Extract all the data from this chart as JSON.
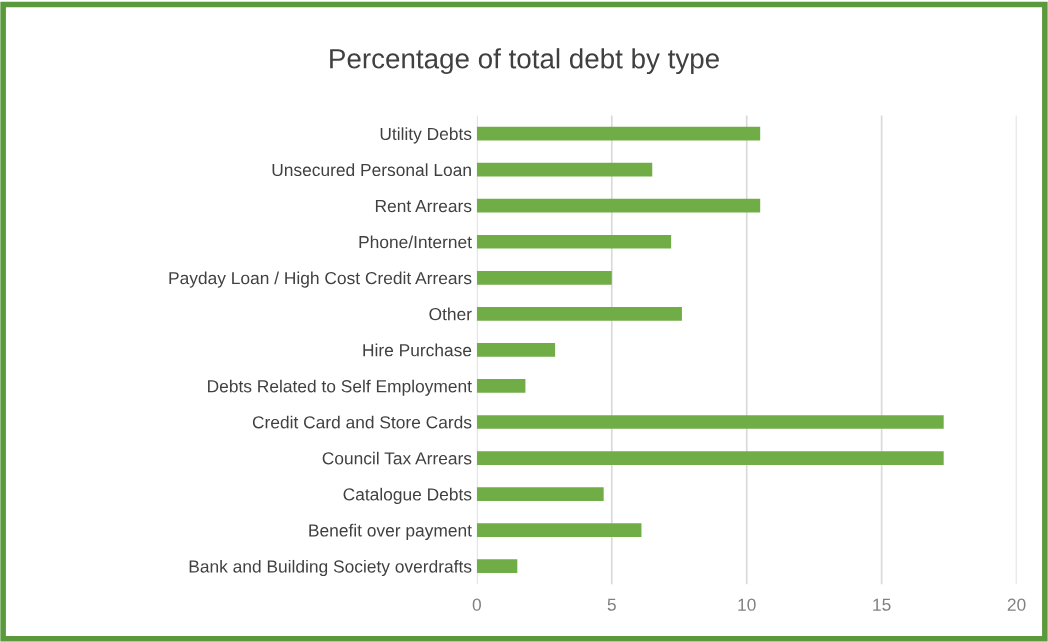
{
  "chart_data": {
    "type": "bar",
    "orientation": "horizontal",
    "title": "Percentage of total debt by type",
    "categories": [
      "Utility Debts",
      "Unsecured Personal Loan",
      "Rent Arrears",
      "Phone/Internet",
      "Payday Loan / High Cost Credit Arrears",
      "Other",
      "Hire Purchase",
      "Debts Related to Self Employment",
      "Credit Card and Store Cards",
      "Council Tax Arrears",
      "Catalogue Debts",
      "Benefit over payment",
      "Bank and Building Society overdrafts"
    ],
    "values": [
      10.5,
      6.5,
      10.5,
      7.2,
      5.0,
      7.6,
      2.9,
      1.8,
      17.3,
      17.3,
      4.7,
      6.1,
      1.5
    ],
    "color": "#70ad47",
    "xlim": [
      0,
      20
    ],
    "xticks": [
      0,
      5,
      10,
      15,
      20
    ],
    "grid": "x"
  }
}
